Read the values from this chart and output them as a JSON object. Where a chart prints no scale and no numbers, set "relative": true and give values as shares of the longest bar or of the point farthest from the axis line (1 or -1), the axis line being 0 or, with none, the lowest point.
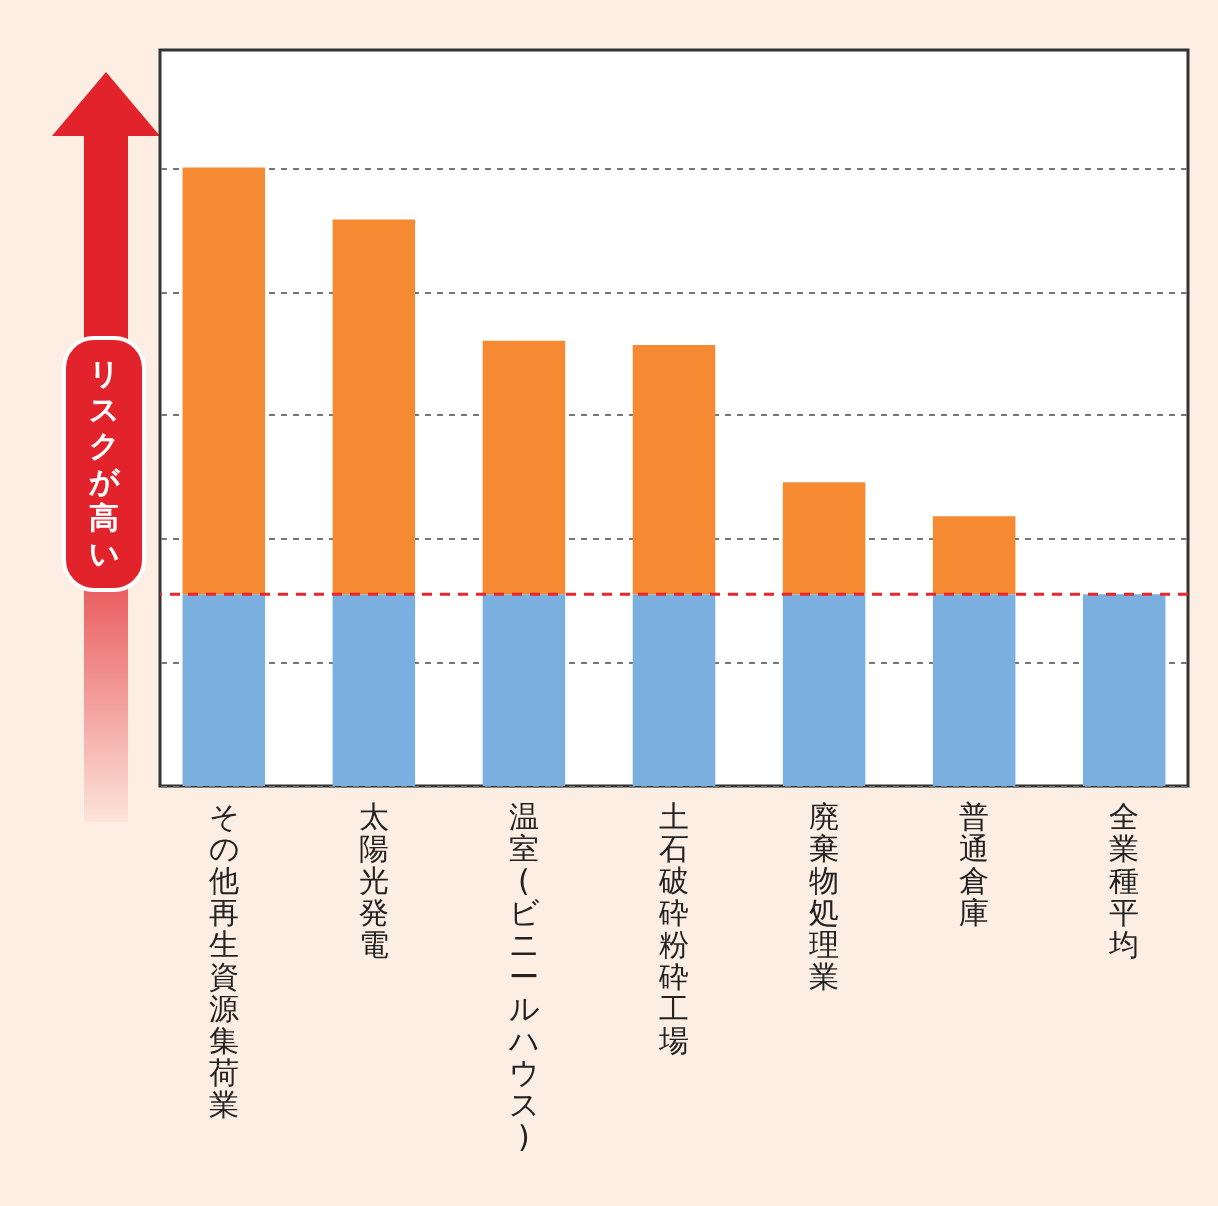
{
  "chart_data": {
    "type": "bar",
    "stacked": true,
    "relative": true,
    "grid": "y",
    "categories": [
      "その他再生資源集荷業",
      "太陽光発電",
      "温室(ビニールハウス)",
      "土石破砕粉砕工場",
      "廃棄物処理業",
      "普通倉庫",
      "全業種平均"
    ],
    "series": [
      {
        "color": "#7aafe0",
        "values": [
          0.31,
          0.31,
          0.31,
          0.31,
          0.31,
          0.31,
          0.31
        ]
      },
      {
        "color": "#f58a33",
        "values": [
          0.69,
          0.606,
          0.41,
          0.403,
          0.181,
          0.126,
          0
        ]
      }
    ],
    "ref_lines": [
      {
        "axis": "y",
        "value": 0.31,
        "color": "#e8262e",
        "line_style": "dashed"
      }
    ],
    "annotations": [
      "リスクが高い"
    ]
  }
}
